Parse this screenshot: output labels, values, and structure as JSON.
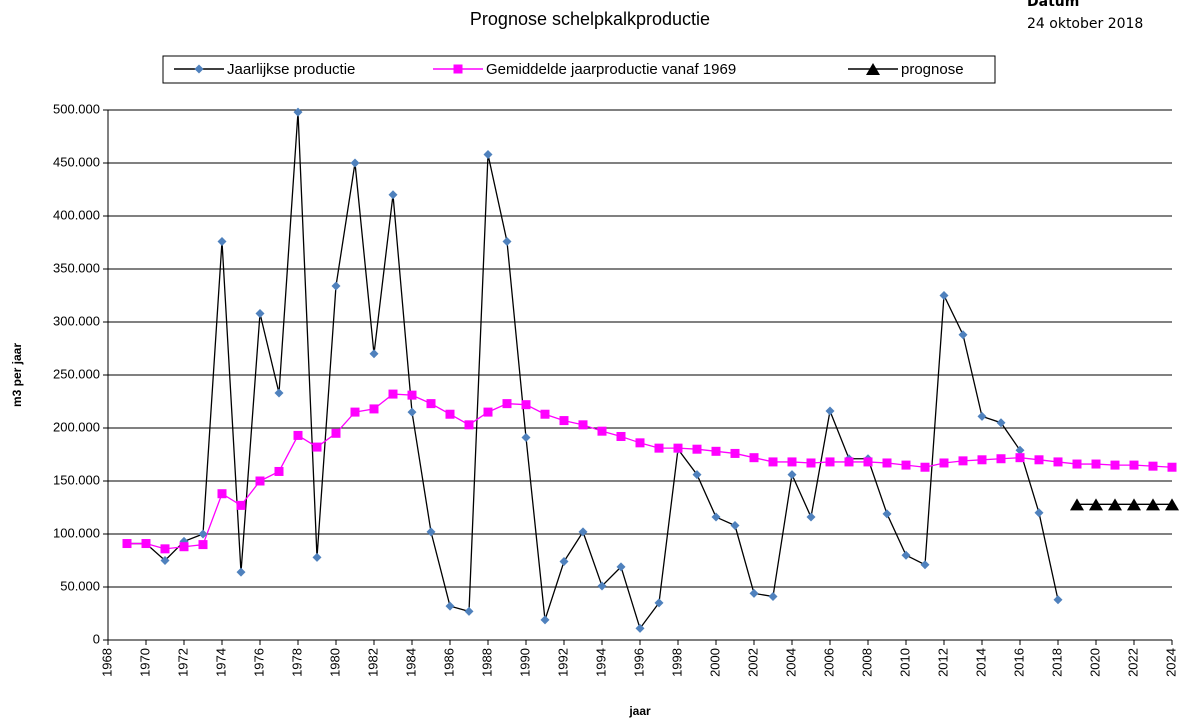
{
  "chart_data": {
    "type": "line",
    "title": "Prognose schelpkalkproductie",
    "annotations": [
      "Datum",
      "24 oktober 2018"
    ],
    "x_label": "jaar",
    "y_label": "m3 per jaar",
    "xlim": [
      1968,
      2024
    ],
    "xticks": [
      1968,
      1970,
      1972,
      1974,
      1976,
      1978,
      1980,
      1982,
      1984,
      1986,
      1988,
      1990,
      1992,
      1994,
      1996,
      1998,
      2000,
      2002,
      2004,
      2006,
      2008,
      2010,
      2012,
      2014,
      2016,
      2018,
      2020,
      2022,
      2024
    ],
    "ylim": [
      0,
      500000
    ],
    "yticks": [
      0,
      {
        "value": 50000,
        "label": "50.000"
      },
      {
        "value": 100000,
        "label": "100.000"
      },
      {
        "value": 150000,
        "label": "150.000"
      },
      {
        "value": 200000,
        "label": "200.000"
      },
      {
        "value": 250000,
        "label": "250.000"
      },
      {
        "value": 300000,
        "label": "300.000"
      },
      {
        "value": 350000,
        "label": "350.000"
      },
      {
        "value": 400000,
        "label": "400.000"
      },
      {
        "value": 450000,
        "label": "450.000"
      },
      {
        "value": 500000,
        "label": "500.000"
      }
    ],
    "grid": true,
    "legend": "top",
    "x": [
      1969,
      1970,
      1971,
      1972,
      1973,
      1974,
      1975,
      1976,
      1977,
      1978,
      1979,
      1980,
      1981,
      1982,
      1983,
      1984,
      1985,
      1986,
      1987,
      1988,
      1989,
      1990,
      1991,
      1992,
      1993,
      1994,
      1995,
      1996,
      1997,
      1998,
      1999,
      2000,
      2001,
      2002,
      2003,
      2004,
      2005,
      2006,
      2007,
      2008,
      2009,
      2010,
      2011,
      2012,
      2013,
      2014,
      2015,
      2016,
      2017,
      2018,
      2019,
      2020,
      2021,
      2022,
      2023,
      2024
    ],
    "series": [
      {
        "name": "Jaarlijkse productie",
        "color": "#000000",
        "marker": "diamond",
        "marker_color": "#4f81bd",
        "values": [
          91000,
          91000,
          75000,
          93000,
          100000,
          376000,
          64000,
          308000,
          233000,
          498000,
          78000,
          334000,
          450000,
          270000,
          420000,
          215000,
          102000,
          32000,
          27000,
          458000,
          376000,
          191000,
          19000,
          74000,
          102000,
          51000,
          69000,
          11000,
          35000,
          180000,
          156000,
          116000,
          108000,
          44000,
          41000,
          156000,
          116000,
          216000,
          171000,
          171000,
          119000,
          80000,
          71000,
          325000,
          288000,
          211000,
          205000,
          179000,
          120000,
          38000,
          null,
          null,
          null,
          null,
          null,
          null
        ]
      },
      {
        "name": "Gemiddelde jaarproductie vanaf 1969",
        "color": "#ff00ff",
        "marker": "square",
        "marker_color": "#ff00ff",
        "values": [
          91000,
          91000,
          86000,
          88000,
          90000,
          138000,
          127000,
          150000,
          159000,
          193000,
          182000,
          195000,
          215000,
          218000,
          232000,
          231000,
          223000,
          213000,
          203000,
          215000,
          223000,
          222000,
          213000,
          207000,
          203000,
          197000,
          192000,
          186000,
          181000,
          181000,
          180000,
          178000,
          176000,
          172000,
          168000,
          168000,
          167000,
          168000,
          168000,
          168000,
          167000,
          165000,
          163000,
          167000,
          169000,
          170000,
          171000,
          172000,
          170000,
          168000,
          166000,
          166000,
          165000,
          165000,
          164000,
          163000
        ]
      },
      {
        "name": "prognose",
        "color": "#000000",
        "marker": "triangle",
        "marker_color": "#000000",
        "values": [
          null,
          null,
          null,
          null,
          null,
          null,
          null,
          null,
          null,
          null,
          null,
          null,
          null,
          null,
          null,
          null,
          null,
          null,
          null,
          null,
          null,
          null,
          null,
          null,
          null,
          null,
          null,
          null,
          null,
          null,
          null,
          null,
          null,
          null,
          null,
          null,
          null,
          null,
          null,
          null,
          null,
          null,
          null,
          null,
          null,
          null,
          null,
          null,
          null,
          null,
          128000,
          128000,
          128000,
          128000,
          128000,
          128000
        ]
      }
    ]
  }
}
